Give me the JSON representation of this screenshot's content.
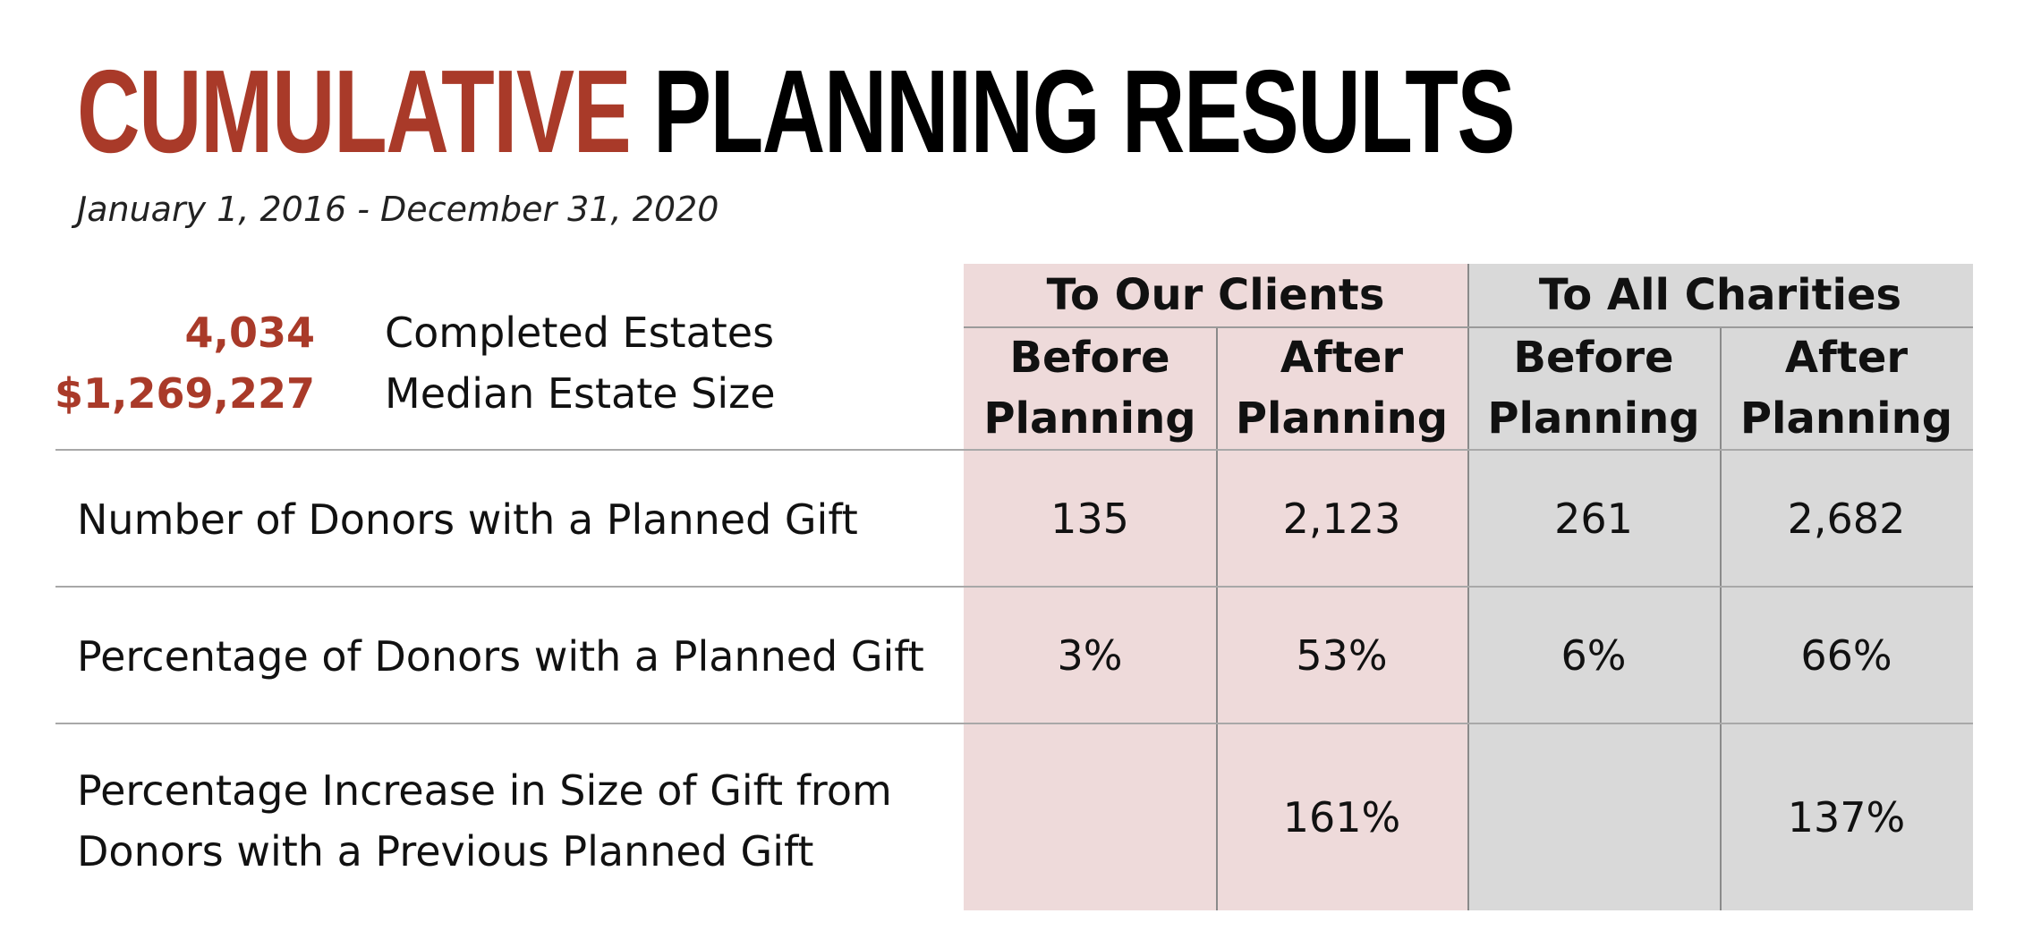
{
  "title": {
    "accent": "CUMULATIVE",
    "rest": "PLANNING RESULTS"
  },
  "date_range": "January 1, 2016 - December 31, 2020",
  "stats": [
    {
      "value": "4,034",
      "label": "Completed Estates"
    },
    {
      "value": "$1,269,227",
      "label": "Median Estate Size"
    }
  ],
  "colors": {
    "accent": "#a93a29",
    "clients_bg": "#eedada",
    "charities_bg": "#d9d9d9"
  },
  "table": {
    "groups": [
      "To Our Clients",
      "To All Charities"
    ],
    "subheaders": [
      [
        "Before",
        "Planning"
      ],
      [
        "After",
        "Planning"
      ],
      [
        "Before",
        "Planning"
      ],
      [
        "After",
        "Planning"
      ]
    ],
    "rows": [
      {
        "label": [
          "Number of Donors with a Planned Gift"
        ],
        "values": [
          "135",
          "2,123",
          "261",
          "2,682"
        ]
      },
      {
        "label": [
          "Percentage of Donors with a Planned Gift"
        ],
        "values": [
          "3%",
          "53%",
          "6%",
          "66%"
        ]
      },
      {
        "label": [
          "Percentage Increase in Size of Gift from",
          "Donors with a Previous Planned Gift"
        ],
        "values": [
          "",
          "161%",
          "",
          "137%"
        ]
      }
    ]
  }
}
